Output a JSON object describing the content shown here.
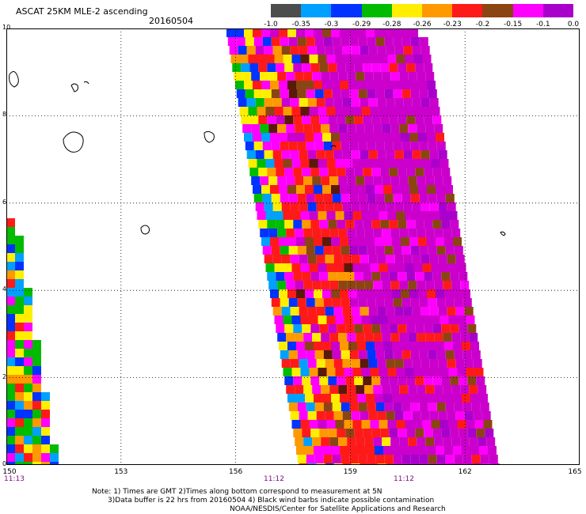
{
  "header": {
    "title": "ASCAT 25KM MLE-2 ascending",
    "date": "20160504"
  },
  "legend": {
    "colors": [
      "#4d4d4d",
      "#00a0ff",
      "#0033ff",
      "#00bb00",
      "#ffee00",
      "#ff9900",
      "#ff1a1a",
      "#8b4513",
      "#ff00ff",
      "#aa00cc"
    ],
    "tick_labels": [
      "-1.0",
      "-0.35",
      "-0.3",
      "-0.29",
      "-0.28",
      "-0.26",
      "-0.23",
      "-0.2",
      "-0.15",
      "-0.1",
      "0.0"
    ]
  },
  "axes": {
    "lat_labels": [
      "10",
      "8",
      "6",
      "4",
      "2",
      "0"
    ],
    "lon_labels": [
      "150",
      "153",
      "156",
      "159",
      "162",
      "165"
    ],
    "time_labels": [
      "11:13",
      "11:12",
      "11:12"
    ]
  },
  "notes": {
    "line1": "Note: 1) Times are GMT 2)Times along bottom correspond to measurement at 5N",
    "line2": "3)Data buffer is 22 hrs from 20160504 4) Black wind barbs indicate possible contamination",
    "credit": "NOAA/NESDIS/Center for Satellite Applications and Research"
  }
}
